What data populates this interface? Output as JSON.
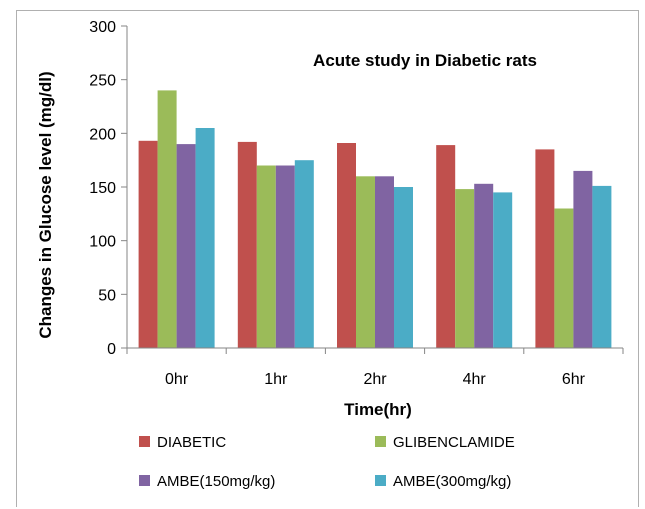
{
  "chart_data": {
    "type": "bar",
    "title": "Acute study in Diabetic rats",
    "xlabel": "Time(hr)",
    "ylabel": "Changes in Glucose level (mg/dl)",
    "categories": [
      "0hr",
      "1hr",
      "2hr",
      "4hr",
      "6hr"
    ],
    "ylim": [
      0,
      300
    ],
    "yticks": [
      0,
      50,
      100,
      150,
      200,
      250,
      300
    ],
    "grid": false,
    "legend_position": "bottom",
    "series": [
      {
        "name": "DIABETIC",
        "color": "#c0504d",
        "values": [
          193,
          192,
          191,
          189,
          185
        ]
      },
      {
        "name": "GLIBENCLAMIDE",
        "color": "#9bbb59",
        "values": [
          240,
          170,
          160,
          148,
          130
        ]
      },
      {
        "name": "AMBE(150mg/kg)",
        "color": "#8064a2",
        "values": [
          190,
          170,
          160,
          153,
          165
        ]
      },
      {
        "name": "AMBE(300mg/kg)",
        "color": "#4bacc6",
        "values": [
          205,
          175,
          150,
          145,
          151
        ]
      }
    ]
  }
}
